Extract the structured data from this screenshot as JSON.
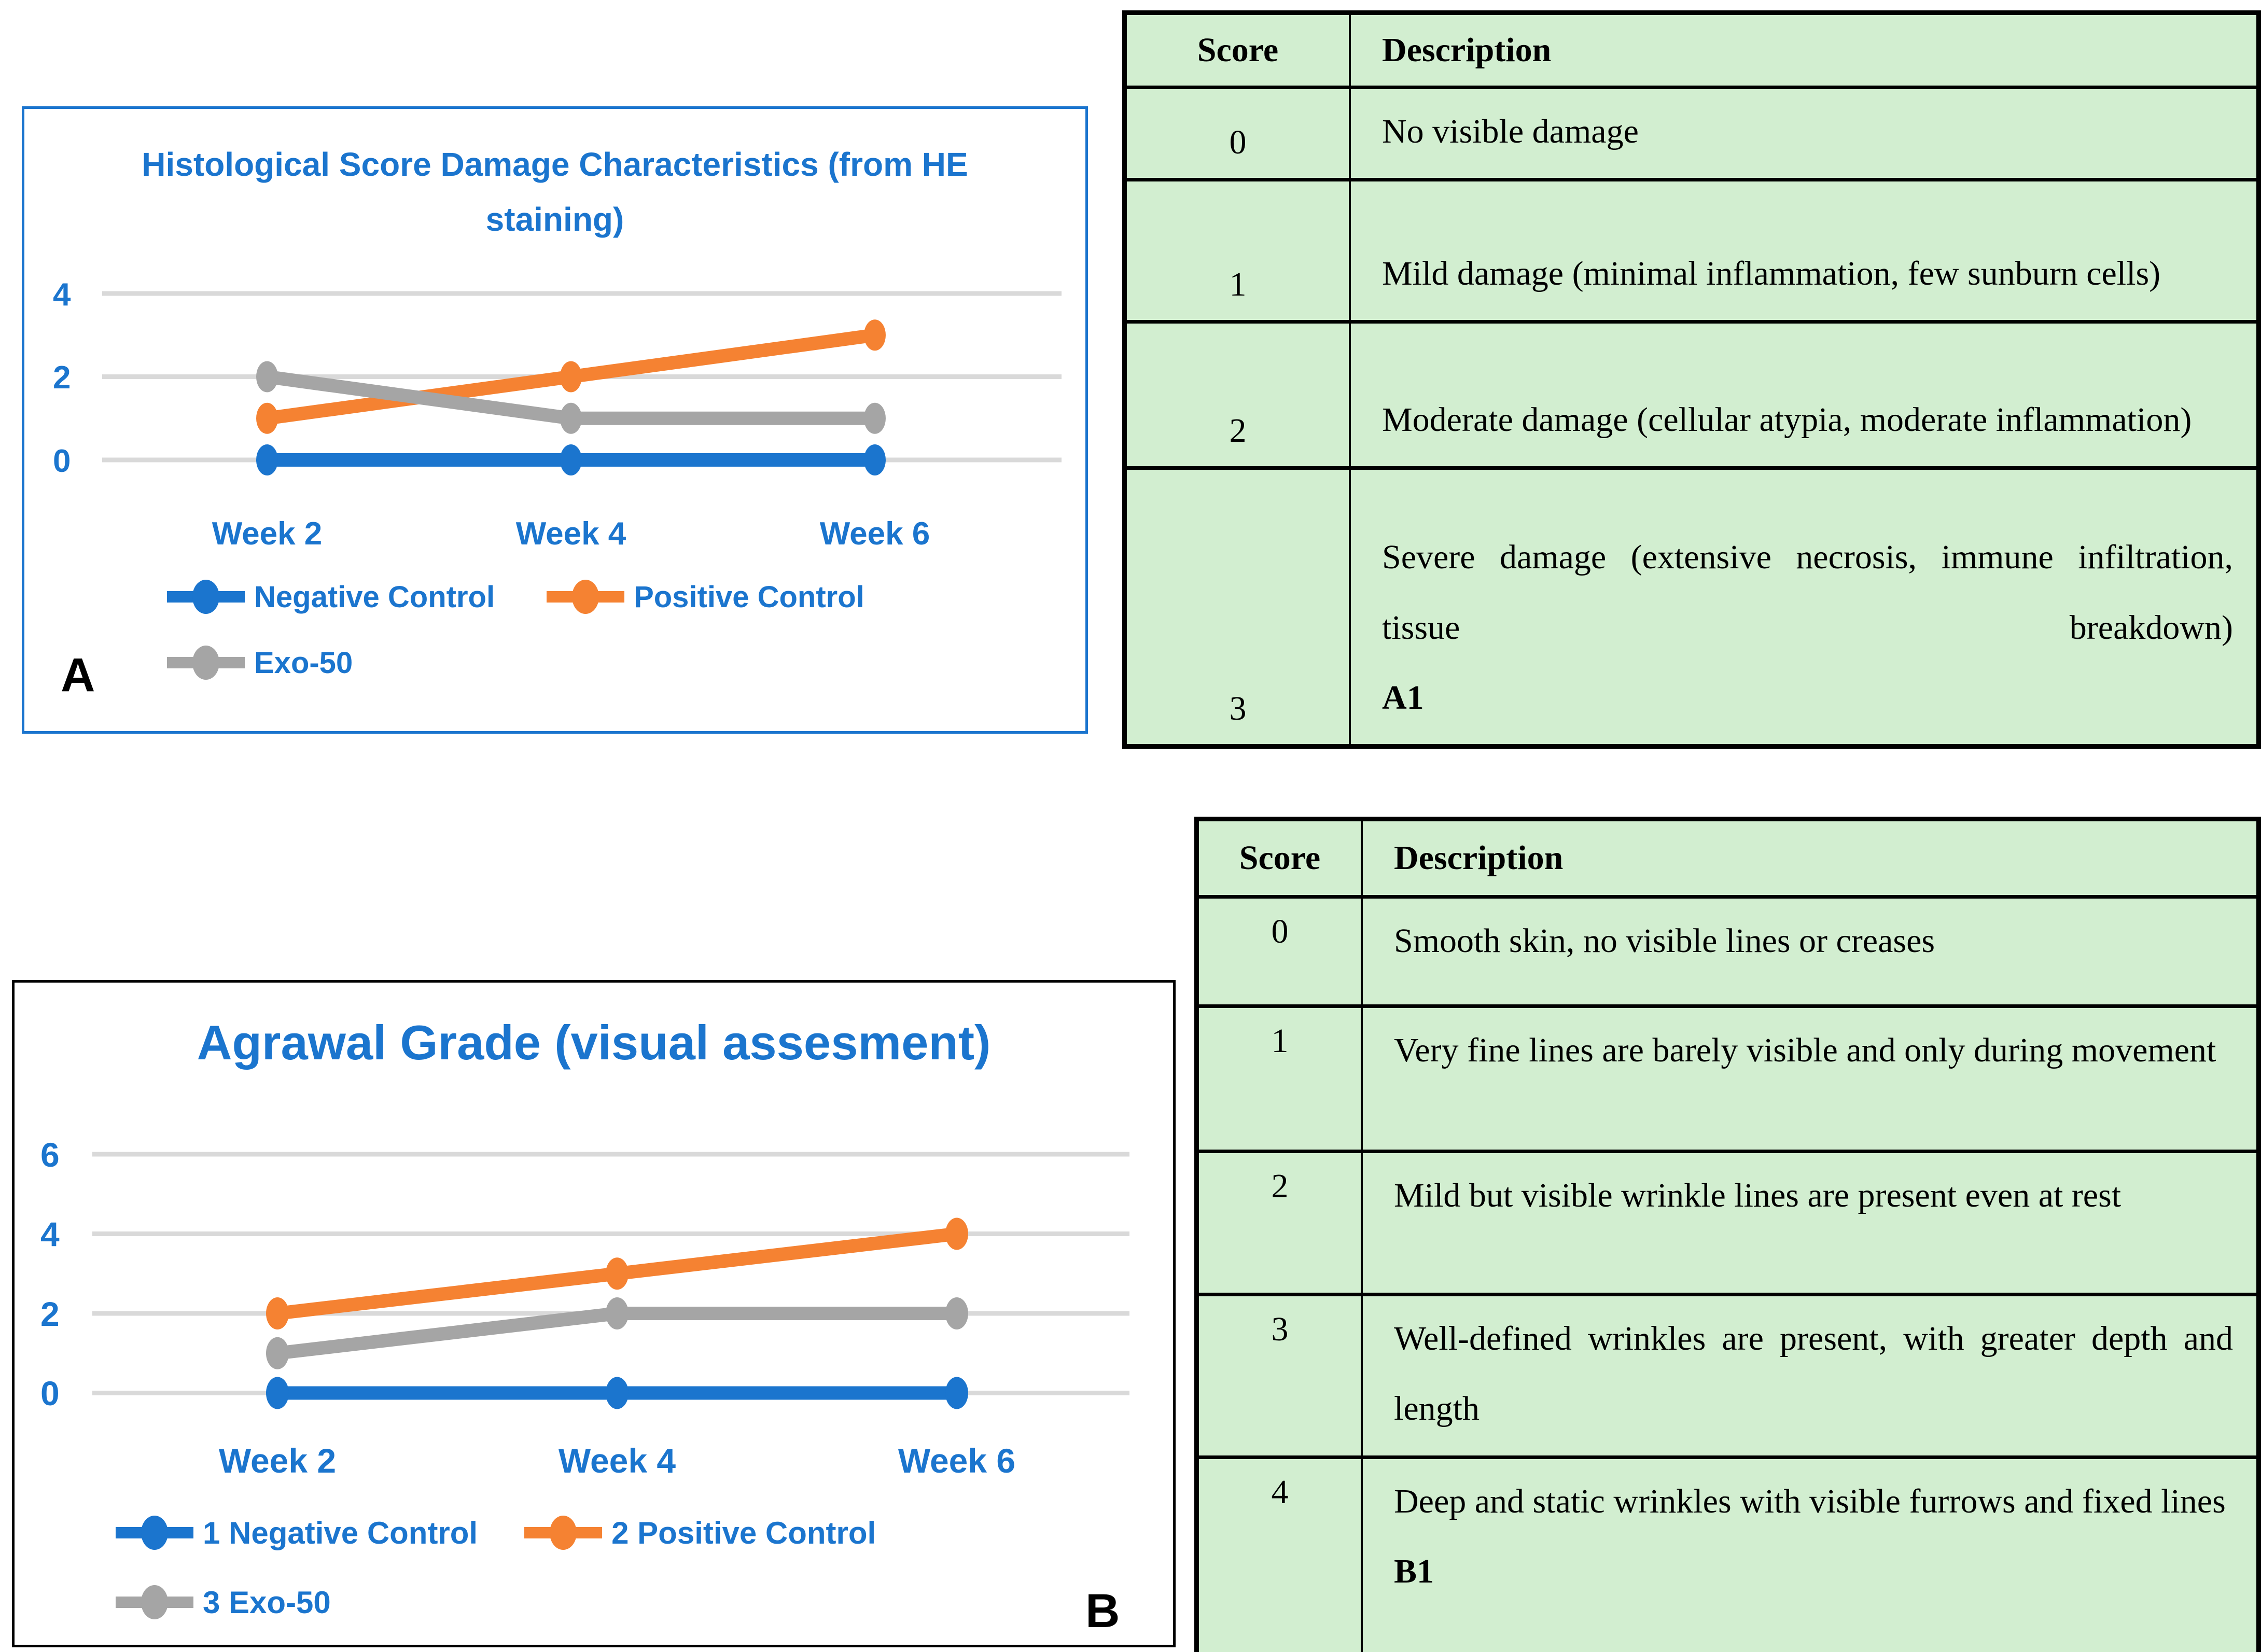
{
  "colors": {
    "accent_blue": "#1B75CE",
    "accent_orange": "#F58232",
    "accent_gray": "#A5A5A5",
    "gridline": "#D9D9D9",
    "table_bg": "#D2EED0",
    "table_border": "#000000"
  },
  "chart_data": [
    {
      "type": "line",
      "panel_label": "A",
      "title": "Histological Score Damage Characteristics (from HE staining)",
      "categories": [
        "Week 2",
        "Week 4",
        "Week 6"
      ],
      "series": [
        {
          "name": "Negative Control",
          "color": "#1B75CE",
          "values": [
            0,
            0,
            0
          ]
        },
        {
          "name": "Positive Control",
          "color": "#F58232",
          "values": [
            1,
            2,
            3
          ]
        },
        {
          "name": "Exo-50",
          "color": "#A5A5A5",
          "values": [
            2,
            1,
            1
          ]
        }
      ],
      "yticks": [
        4,
        2,
        0
      ],
      "ylim": [
        0,
        4
      ],
      "xlabel": "",
      "ylabel": "",
      "grid": true,
      "legend_position": "bottom"
    },
    {
      "type": "line",
      "panel_label": "B",
      "title": "Agrawal Grade (visual assesment)",
      "categories": [
        "Week 2",
        "Week 4",
        "Week 6"
      ],
      "series": [
        {
          "name": "1 Negative Control",
          "color": "#1B75CE",
          "values": [
            0,
            0,
            0
          ]
        },
        {
          "name": "2 Positive Control",
          "color": "#F58232",
          "values": [
            2,
            3,
            4
          ]
        },
        {
          "name": "3 Exo-50",
          "color": "#A5A5A5",
          "values": [
            1,
            2,
            2
          ]
        }
      ],
      "yticks": [
        6,
        4,
        2,
        0
      ],
      "ylim": [
        0,
        6
      ],
      "xlabel": "",
      "ylabel": "",
      "grid": true,
      "legend_position": "bottom"
    }
  ],
  "tables": [
    {
      "id": "A1",
      "headers": [
        "Score",
        "Description"
      ],
      "rows": [
        {
          "score": "0",
          "description": "No visible damage",
          "label": ""
        },
        {
          "score": "1",
          "description": "Mild damage (minimal inflammation, few sunburn cells)",
          "label": ""
        },
        {
          "score": "2",
          "description": "Moderate damage (cellular atypia, moderate inflammation)",
          "label": ""
        },
        {
          "score": "3",
          "description": "Severe damage (extensive necrosis, immune infiltration, tissue breakdown)",
          "label": "A1"
        }
      ]
    },
    {
      "id": "B1",
      "headers": [
        "Score",
        "Description"
      ],
      "rows": [
        {
          "score": "0",
          "description": "Smooth skin, no visible lines or creases",
          "label": ""
        },
        {
          "score": "1",
          "description": "Very fine lines are barely visible and only during movement",
          "label": ""
        },
        {
          "score": "2",
          "description": "Mild but visible wrinkle lines are present even at rest",
          "label": ""
        },
        {
          "score": "3",
          "description": "Well-defined wrinkles are present, with greater depth and length",
          "label": ""
        },
        {
          "score": "4",
          "description": "Deep and static wrinkles with visible furrows and fixed lines",
          "label": "B1"
        }
      ]
    }
  ]
}
